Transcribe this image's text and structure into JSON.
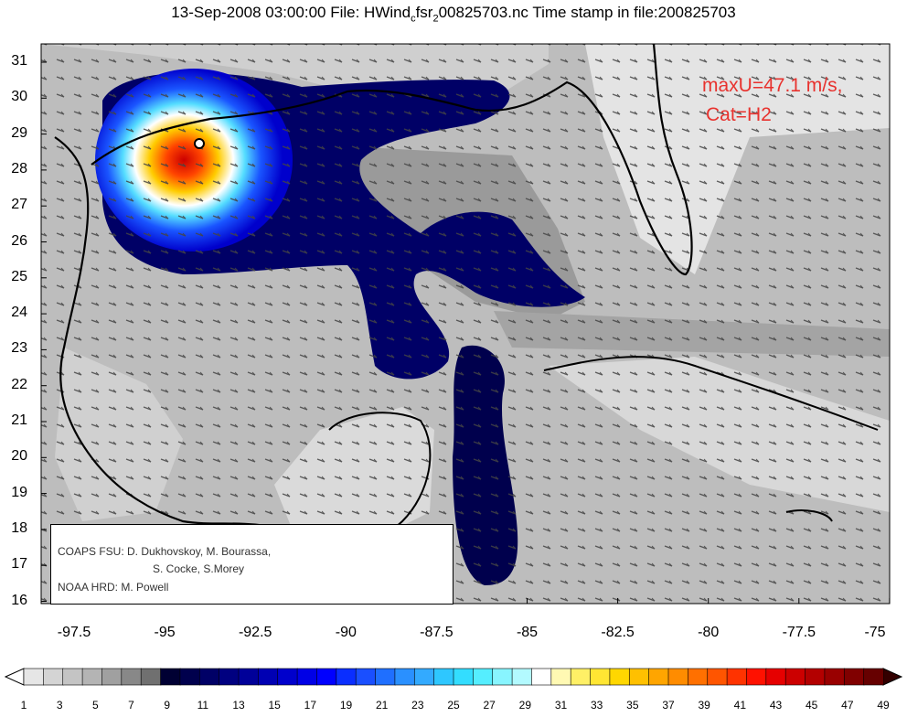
{
  "title": {
    "date": "13-Sep-2008 03:00:00",
    "file_prefix": "File: HWind",
    "file_sub": "c",
    "file_mid": "fsr",
    "file_sub2": "2",
    "file_rest": "00825703.nc Time stamp in file:200825703"
  },
  "map": {
    "lat_ticks": [
      "31",
      "30",
      "29",
      "28",
      "27",
      "26",
      "25",
      "24",
      "23",
      "22",
      "21",
      "20",
      "19",
      "18",
      "17",
      "16"
    ],
    "lon_ticks": [
      "-97.5",
      "-95",
      "-92.5",
      "-90",
      "-87.5",
      "-85",
      "-82.5",
      "-80",
      "-77.5",
      "-75"
    ],
    "max_wind_text": "maxU=47.1 m/s,",
    "category_text": "Cat=H2",
    "annotation_color": "#e8322e"
  },
  "credits": {
    "line1": "COAPS FSU: D. Dukhovskoy, M. Bourassa,",
    "line2": "S. Cocke, S.Morey",
    "line3": "NOAA HRD:  M. Powell"
  },
  "colorbar": {
    "labels": [
      "1",
      "3",
      "5",
      "7",
      "9",
      "11",
      "13",
      "15",
      "17",
      "19",
      "21",
      "23",
      "25",
      "27",
      "29",
      "31",
      "33",
      "35",
      "37",
      "39",
      "41",
      "43",
      "45",
      "47",
      "49"
    ],
    "colors": [
      "#e6e6e6",
      "#d4d4d4",
      "#c4c4c4",
      "#b4b4b4",
      "#a0a0a0",
      "#888888",
      "#707070",
      "#000033",
      "#00004d",
      "#000066",
      "#000080",
      "#000099",
      "#0000b3",
      "#0000cc",
      "#0000e6",
      "#0000ff",
      "#0a2eff",
      "#1a4fff",
      "#1f6fff",
      "#2a90ff",
      "#33aaff",
      "#2ec7ff",
      "#33ddff",
      "#55eeff",
      "#88f5ff",
      "#b3faff",
      "#ffffff",
      "#fff9b3",
      "#fff066",
      "#ffe633",
      "#ffd700",
      "#ffc000",
      "#ffa500",
      "#ff8c00",
      "#ff7000",
      "#ff5500",
      "#ff3300",
      "#ff1100",
      "#e60000",
      "#cc0000",
      "#b30000",
      "#990000",
      "#800000",
      "#660000"
    ]
  }
}
